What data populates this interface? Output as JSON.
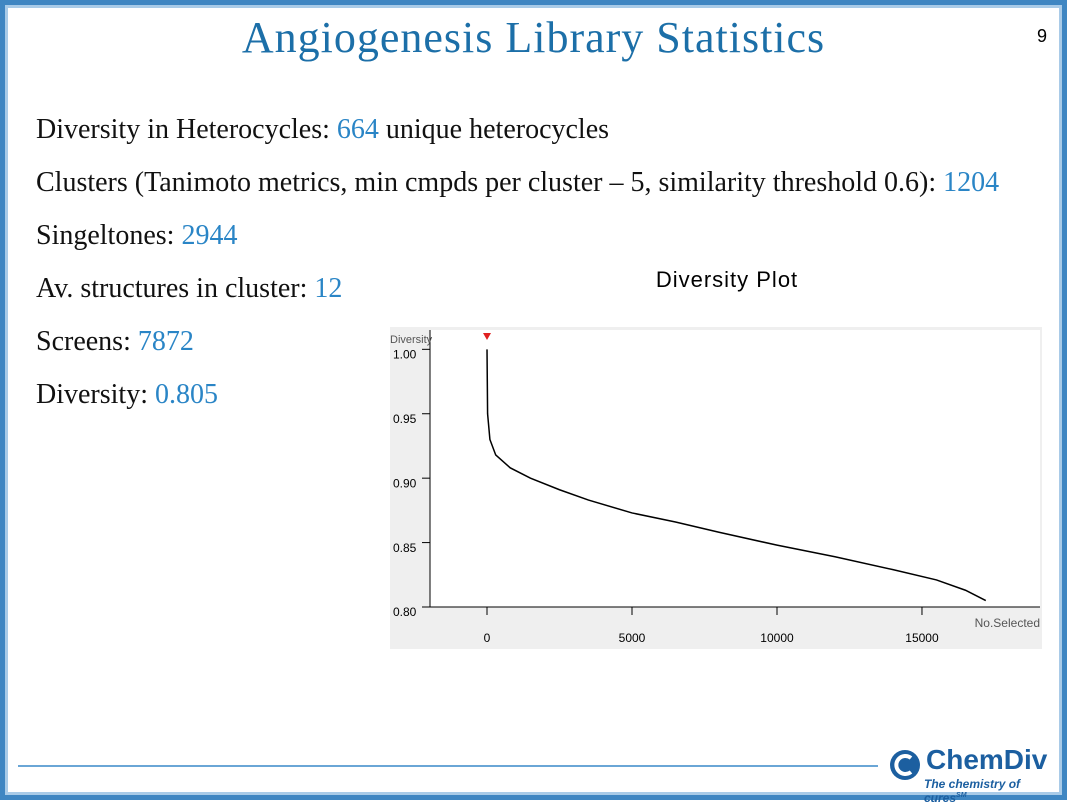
{
  "slide": {
    "title": "Angiogenesis Library Statistics",
    "page_number": "9",
    "items": [
      {
        "label": "Diversity in Heterocycles: ",
        "value": "664",
        "suffix": " unique heterocycles"
      },
      {
        "label": "Clusters (Tanimoto metrics, min cmpds per cluster – 5, similarity threshold 0.6): ",
        "value": "1204"
      },
      {
        "label": "Singeltones: ",
        "value": "2944"
      },
      {
        "label": "Av. structures in cluster: ",
        "value": "12"
      },
      {
        "label": "Screens: ",
        "value": "7872"
      },
      {
        "label": "Diversity: ",
        "value": "0.805"
      }
    ],
    "logo": {
      "name": "ChemDiv",
      "tagline": "The chemistry of cures",
      "mark": "SM"
    }
  },
  "chart_data": {
    "type": "line",
    "title": "Diversity Plot",
    "y_label": "Diversity",
    "x_label": "No.Selected",
    "x": [
      0,
      20,
      100,
      300,
      800,
      1500,
      2500,
      3500,
      5000,
      6500,
      8000,
      10000,
      12000,
      14000,
      15500,
      16500,
      17200
    ],
    "series": [
      {
        "name": "Diversity",
        "color": "#000000",
        "values": [
          1.0,
          0.95,
          0.93,
          0.918,
          0.908,
          0.9,
          0.891,
          0.883,
          0.873,
          0.866,
          0.858,
          0.848,
          0.839,
          0.829,
          0.821,
          0.813,
          0.805
        ]
      }
    ],
    "xlim": [
      -1966,
      19070
    ],
    "ylim": [
      0.8,
      1.015
    ],
    "xticks": [
      0,
      5000,
      10000,
      15000
    ],
    "yticks": [
      {
        "value": 0.8,
        "label": "0.80"
      },
      {
        "value": 0.85,
        "label": "0.85"
      },
      {
        "value": 0.9,
        "label": "0.90"
      },
      {
        "value": 0.95,
        "label": "0.95"
      },
      {
        "value": 1.0,
        "label": "1.00"
      }
    ],
    "grid": false
  }
}
